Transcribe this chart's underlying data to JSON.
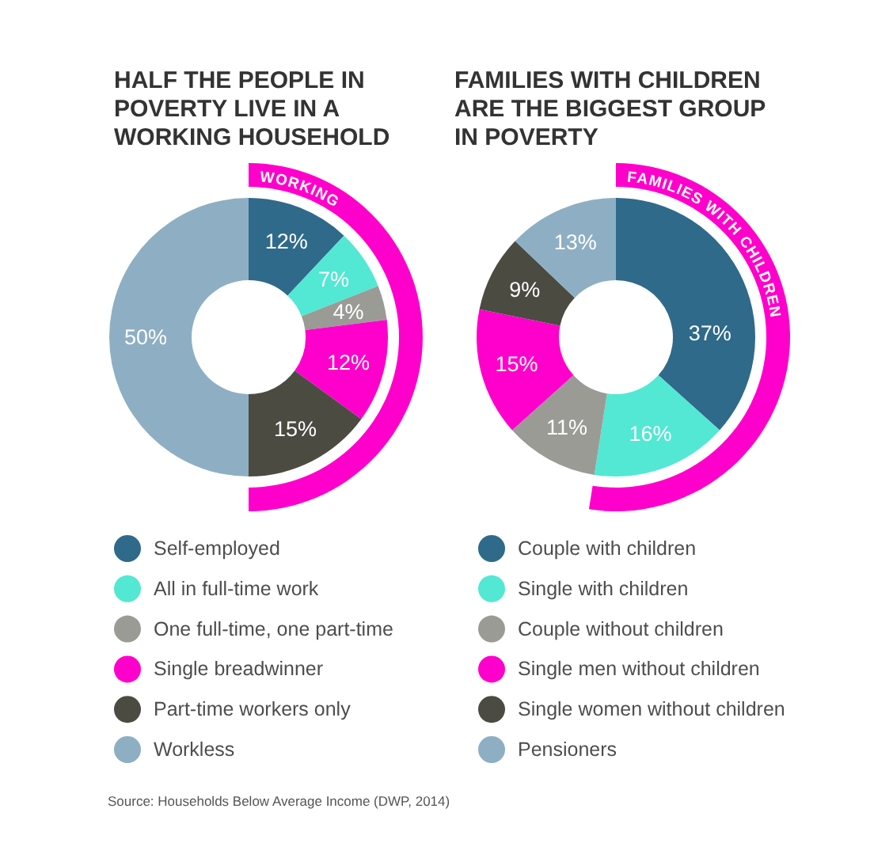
{
  "chart_data": [
    {
      "type": "donut",
      "title": "HALF THE PEOPLE IN POVERTY LIVE IN A WORKING HOUSEHOLD",
      "categories": [
        "Self-employed",
        "All in full-time work",
        "One full-time, one part-time",
        "Single breadwinner",
        "Part-time workers only",
        "Workless"
      ],
      "values": [
        12,
        7,
        4,
        12,
        15,
        50
      ],
      "colors": [
        "#2f6a8a",
        "#52e8d3",
        "#9b9b96",
        "#ff00cc",
        "#4b4b42",
        "#8eafc3"
      ],
      "value_labels": [
        "12%",
        "7%",
        "4%",
        "12%",
        "15%",
        "50%"
      ],
      "legend": "bottom",
      "annotations": [
        "WORKING",
        "Source: Households Below Average Income (DWP, 2014)"
      ]
    },
    {
      "type": "donut",
      "title": "FAMILIES WITH CHILDREN ARE THE BIGGEST GROUP IN POVERTY",
      "categories": [
        "Couple with children",
        "Single with children",
        "Couple without children",
        "Single men without children",
        "Single women without children",
        "Pensioners"
      ],
      "values": [
        37,
        16,
        11,
        15,
        9,
        13
      ],
      "colors": [
        "#2f6a8a",
        "#52e8d3",
        "#9b9b96",
        "#ff00cc",
        "#4b4b42",
        "#8eafc3"
      ],
      "value_labels": [
        "37%",
        "16%",
        "11%",
        "15%",
        "9%",
        "13%"
      ],
      "legend": "bottom",
      "annotations": [
        "FAMILIES WITH CHILDREN"
      ]
    }
  ]
}
